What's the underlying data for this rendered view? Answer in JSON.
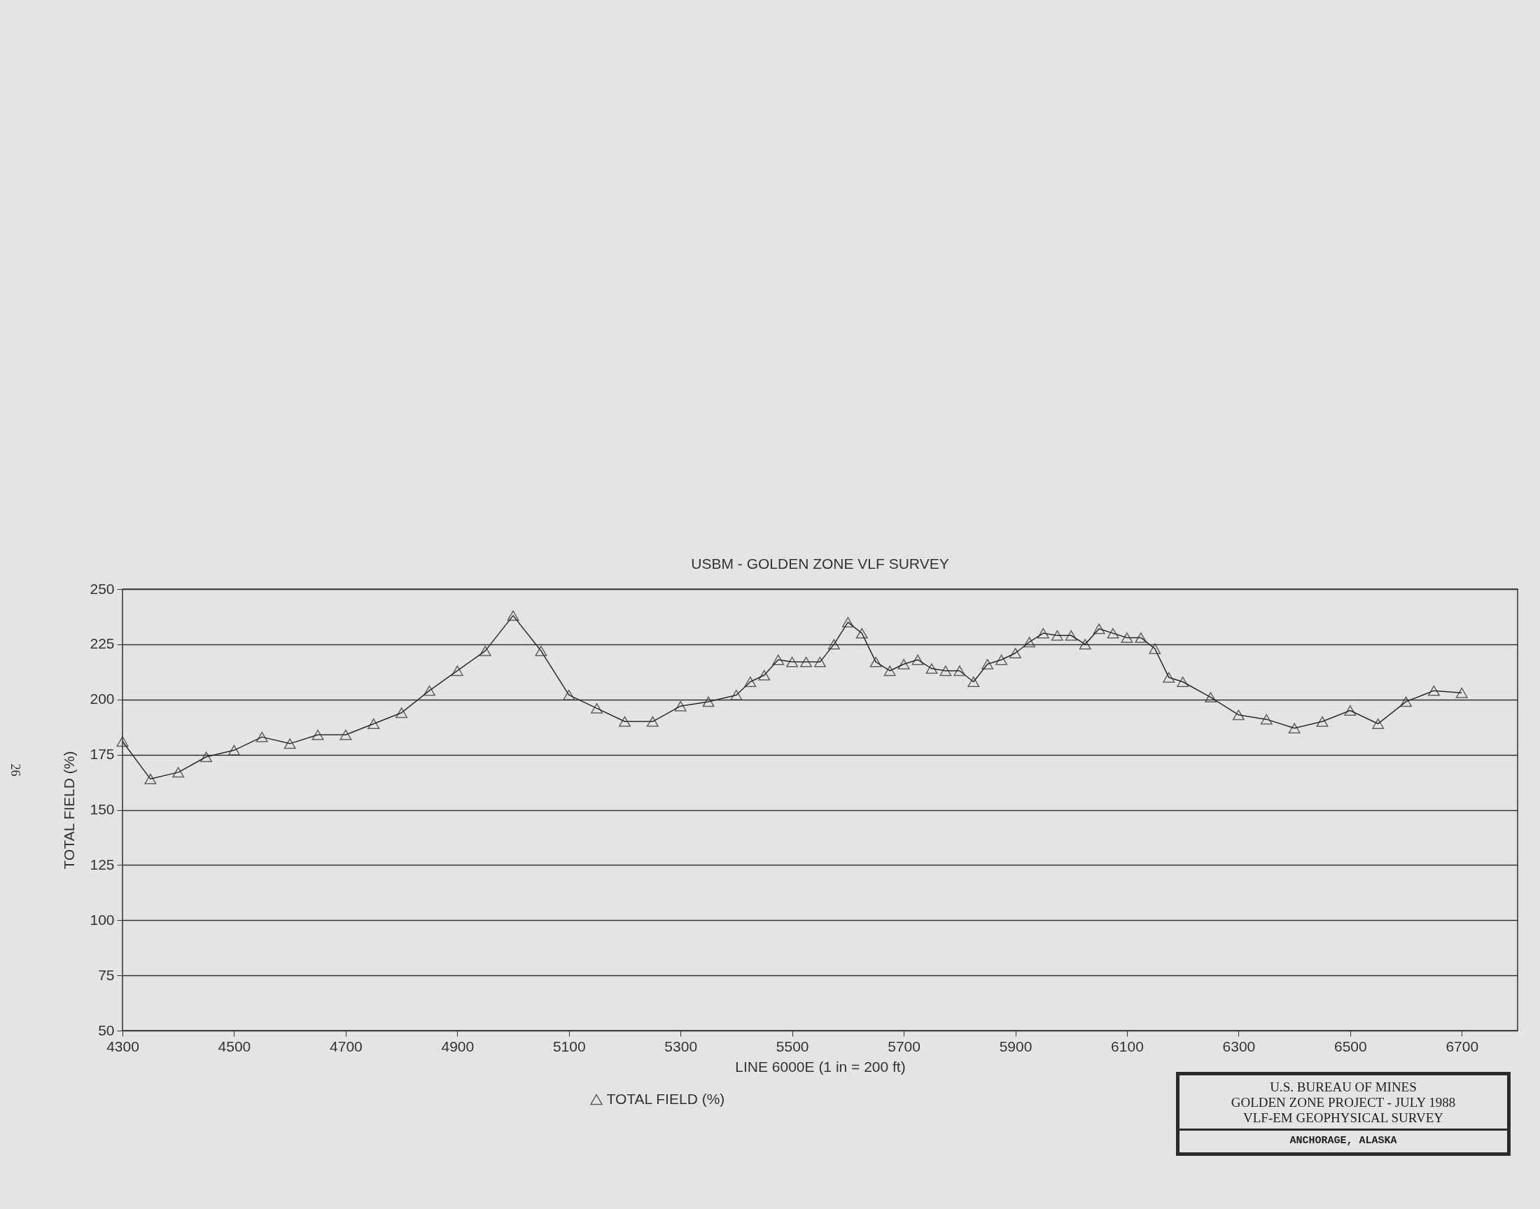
{
  "chart_data": {
    "type": "line",
    "title": "USBM - GOLDEN ZONE VLF SURVEY",
    "xlabel": "LINE 6000E (1 in = 200 ft)",
    "ylabel": "TOTAL FIELD (%)",
    "x": [
      4300,
      4350,
      4400,
      4450,
      4500,
      4550,
      4600,
      4650,
      4700,
      4750,
      4800,
      4850,
      4900,
      4950,
      5000,
      5050,
      5100,
      5150,
      5200,
      5250,
      5300,
      5350,
      5400,
      5425,
      5450,
      5475,
      5500,
      5525,
      5550,
      5575,
      5600,
      5625,
      5650,
      5675,
      5700,
      5725,
      5750,
      5775,
      5800,
      5825,
      5850,
      5875,
      5900,
      5925,
      5950,
      5975,
      6000,
      6025,
      6050,
      6075,
      6100,
      6125,
      6150,
      6175,
      6200,
      6250,
      6300,
      6350,
      6400,
      6450,
      6500,
      6550,
      6600,
      6650,
      6700
    ],
    "series": [
      {
        "name": "TOTAL FIELD (%)",
        "color": "#2b2b2b",
        "values": [
          181,
          164,
          167,
          174,
          177,
          183,
          180,
          184,
          184,
          189,
          194,
          204,
          213,
          222,
          238,
          222,
          202,
          196,
          190,
          190,
          197,
          199,
          202,
          208,
          211,
          218,
          217,
          217,
          217,
          225,
          235,
          230,
          217,
          213,
          216,
          218,
          214,
          213,
          213,
          208,
          216,
          218,
          221,
          226,
          230,
          229,
          229,
          225,
          232,
          230,
          228,
          228,
          223,
          210,
          208,
          201,
          193,
          191,
          187,
          190,
          195,
          189,
          199,
          204,
          203
        ]
      }
    ],
    "xlim": [
      4300,
      6800
    ],
    "xticks": [
      4300,
      4500,
      4700,
      4900,
      5100,
      5300,
      5500,
      5700,
      5900,
      6100,
      6300,
      6500,
      6700
    ],
    "ylim": [
      50,
      250
    ],
    "yticks": [
      50,
      75,
      100,
      125,
      150,
      175,
      200,
      225,
      250
    ],
    "grid": "y",
    "marker": "triangle",
    "line_style": "solid",
    "legend": "bottom",
    "annotations": [
      "26",
      "U.S. BUREAU OF MINES",
      "GOLDEN ZONE PROJECT - JULY 1988",
      "VLF-EM GEOPHYSICAL SURVEY",
      "ANCHORAGE, ALASKA"
    ]
  }
}
